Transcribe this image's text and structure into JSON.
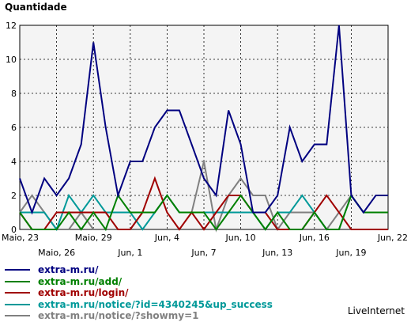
{
  "chart_data": {
    "type": "line",
    "ylabel": "Quantidade",
    "ylim": [
      0,
      12
    ],
    "yticks": [
      "0",
      "2",
      "4",
      "6",
      "8",
      "10",
      "12"
    ],
    "grid": true,
    "x": [
      "Maio, 23",
      "Maio, 24",
      "Maio, 25",
      "Maio, 26",
      "Maio, 27",
      "Maio, 28",
      "Maio, 29",
      "Maio, 30",
      "Maio, 31",
      "Jun, 1",
      "Jun, 2",
      "Jun, 3",
      "Jun, 4",
      "Jun, 5",
      "Jun, 6",
      "Jun, 7",
      "Jun, 8",
      "Jun, 9",
      "Jun, 10",
      "Jun, 11",
      "Jun, 12",
      "Jun, 13",
      "Jun, 14",
      "Jun, 15",
      "Jun, 16",
      "Jun, 17",
      "Jun, 18",
      "Jun, 19",
      "Jun, 20",
      "Jun, 21",
      "Jun, 22"
    ],
    "xticks": [
      {
        "label": "Maio, 23",
        "index": 0,
        "row": 0
      },
      {
        "label": "Maio, 26",
        "index": 3,
        "row": 1
      },
      {
        "label": "Maio, 29",
        "index": 6,
        "row": 0
      },
      {
        "label": "Jun, 1",
        "index": 9,
        "row": 1
      },
      {
        "label": "Jun, 4",
        "index": 12,
        "row": 0
      },
      {
        "label": "Jun, 7",
        "index": 15,
        "row": 1
      },
      {
        "label": "Jun, 10",
        "index": 18,
        "row": 0
      },
      {
        "label": "Jun, 13",
        "index": 21,
        "row": 1
      },
      {
        "label": "Jun, 16",
        "index": 24,
        "row": 0
      },
      {
        "label": "Jun, 19",
        "index": 27,
        "row": 1
      },
      {
        "label": "Jun, 22",
        "index": 30,
        "row": 0
      }
    ],
    "series": [
      {
        "name": "extra-m.ru/",
        "color": "#000080",
        "values": [
          3,
          1,
          3,
          2,
          3,
          5,
          11,
          6,
          2,
          4,
          4,
          6,
          7,
          7,
          5,
          3,
          2,
          7,
          5,
          1,
          1,
          2,
          6,
          4,
          5,
          5,
          12,
          2,
          1,
          2,
          2
        ]
      },
      {
        "name": "extra-m.ru/add/",
        "color": "#008000",
        "values": [
          1,
          0,
          0,
          0,
          1,
          0,
          1,
          0,
          2,
          1,
          1,
          1,
          2,
          1,
          1,
          1,
          0,
          1,
          2,
          1,
          0,
          1,
          0,
          0,
          1,
          0,
          0,
          2,
          1,
          1,
          1
        ]
      },
      {
        "name": "extra-m.ru/login/",
        "color": "#a00000",
        "values": [
          1,
          0,
          0,
          1,
          1,
          1,
          1,
          1,
          0,
          0,
          1,
          3,
          1,
          0,
          1,
          0,
          1,
          2,
          2,
          1,
          1,
          0,
          0,
          0,
          1,
          2,
          1,
          0,
          0,
          0,
          0
        ]
      },
      {
        "name": "extra-m.ru/notice/?id=4340245&up_success",
        "color": "#009999",
        "values": [
          1,
          1,
          1,
          0,
          2,
          1,
          2,
          1,
          1,
          1,
          0,
          1,
          2,
          1,
          1,
          1,
          1,
          1,
          1,
          1,
          0,
          1,
          1,
          2,
          1,
          0,
          0,
          2,
          1,
          1,
          1
        ]
      },
      {
        "name": "extra-m.ru/notice/?showmy=1",
        "color": "#808080",
        "values": [
          1,
          2,
          1,
          0,
          0,
          1,
          0,
          0,
          0,
          0,
          1,
          1,
          2,
          1,
          1,
          4,
          0,
          2,
          3,
          2,
          2,
          0,
          1,
          1,
          1,
          0,
          1,
          2,
          1,
          1,
          1
        ]
      }
    ]
  },
  "brand": "LiveInternet"
}
